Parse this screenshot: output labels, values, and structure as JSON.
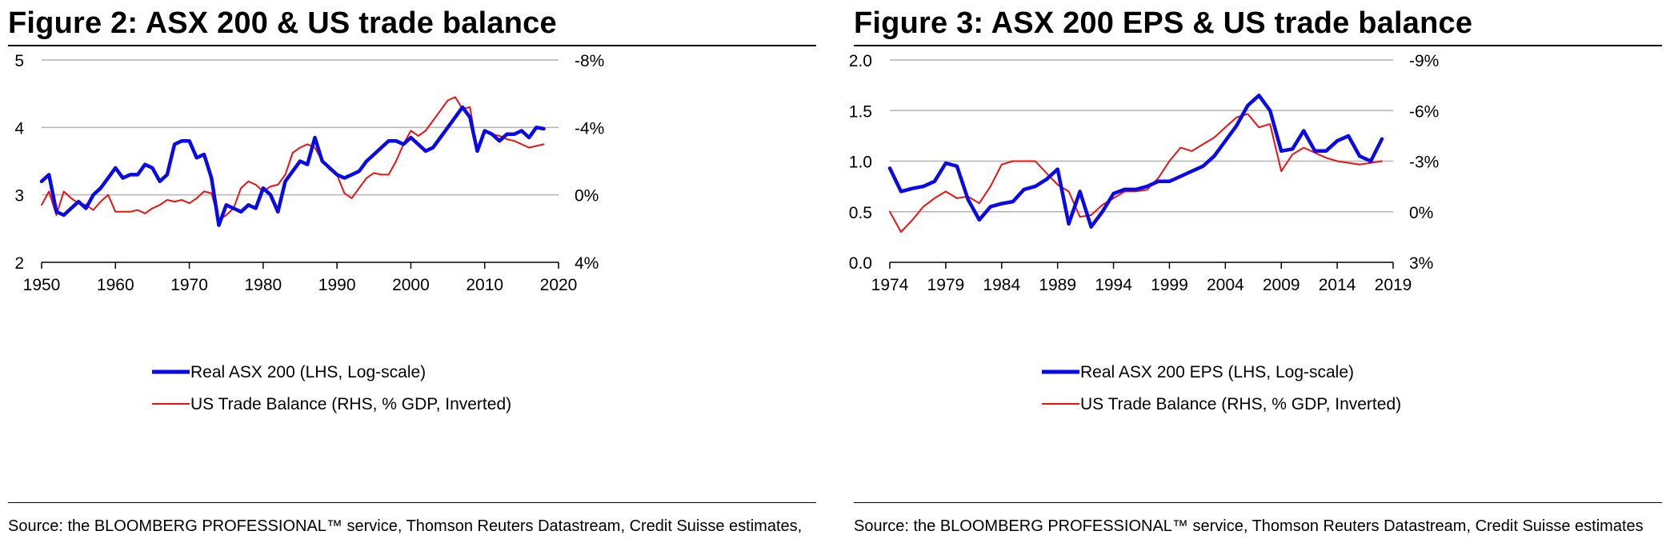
{
  "colors": {
    "asx": "#0a0ae6",
    "trade": "#ee1111",
    "grid": "#b3b3b3",
    "axis": "#000000"
  },
  "figures": [
    {
      "title": "Figure 2: ASX 200 & US trade balance",
      "source": "Source: the BLOOMBERG PROFESSIONAL™ service, Thomson Reuters Datastream, Credit Suisse estimates,"
    },
    {
      "title": "Figure 3: ASX 200 EPS & US trade balance",
      "source": "Source: the BLOOMBERG PROFESSIONAL™ service, Thomson Reuters Datastream, Credit Suisse estimates"
    }
  ],
  "chart_data": [
    {
      "type": "line",
      "title": "Figure 2: ASX 200 & US trade balance",
      "xlim": [
        1950,
        2020
      ],
      "x_ticks": [
        "1950",
        "1960",
        "1970",
        "1980",
        "1990",
        "2000",
        "2010",
        "2020"
      ],
      "x_tick_values": [
        1950,
        1960,
        1970,
        1980,
        1990,
        2000,
        2010,
        2020
      ],
      "ylim_left": [
        2,
        5
      ],
      "y_ticks_left": [
        "2",
        "3",
        "4",
        "5"
      ],
      "y_tick_values_left": [
        2,
        3,
        4,
        5
      ],
      "ylim_right": [
        4,
        -8
      ],
      "y_ticks_right": [
        "4%",
        "0%",
        "-4%",
        "-8%"
      ],
      "y_tick_values_right": [
        4,
        0,
        -4,
        -8
      ],
      "grid": true,
      "legend_position": "bottom-center",
      "series": [
        {
          "name": "Real ASX 200 (LHS, Log-scale)",
          "axis": "left",
          "x": [
            1950,
            1951,
            1952,
            1953,
            1954,
            1955,
            1956,
            1957,
            1958,
            1959,
            1960,
            1961,
            1962,
            1963,
            1964,
            1965,
            1966,
            1967,
            1968,
            1969,
            1970,
            1971,
            1972,
            1973,
            1974,
            1975,
            1976,
            1977,
            1978,
            1979,
            1980,
            1981,
            1982,
            1983,
            1984,
            1985,
            1986,
            1987,
            1988,
            1989,
            1990,
            1991,
            1992,
            1993,
            1994,
            1995,
            1996,
            1997,
            1998,
            1999,
            2000,
            2001,
            2002,
            2003,
            2004,
            2005,
            2006,
            2007,
            2008,
            2009,
            2010,
            2011,
            2012,
            2013,
            2014,
            2015,
            2016,
            2017,
            2018
          ],
          "values": [
            3.2,
            3.3,
            2.75,
            2.7,
            2.8,
            2.9,
            2.8,
            3.0,
            3.1,
            3.25,
            3.4,
            3.25,
            3.3,
            3.3,
            3.45,
            3.4,
            3.2,
            3.3,
            3.75,
            3.8,
            3.8,
            3.55,
            3.6,
            3.25,
            2.55,
            2.85,
            2.8,
            2.75,
            2.85,
            2.8,
            3.1,
            3.0,
            2.75,
            3.2,
            3.35,
            3.5,
            3.45,
            3.85,
            3.5,
            3.4,
            3.3,
            3.25,
            3.3,
            3.35,
            3.5,
            3.6,
            3.7,
            3.8,
            3.8,
            3.75,
            3.85,
            3.75,
            3.65,
            3.7,
            3.85,
            4.0,
            4.15,
            4.3,
            4.15,
            3.65,
            3.95,
            3.9,
            3.8,
            3.9,
            3.9,
            3.95,
            3.85,
            4.0,
            3.98
          ]
        },
        {
          "name": "US Trade Balance (RHS, % GDP, Inverted)",
          "axis": "right",
          "x": [
            1950,
            1951,
            1952,
            1953,
            1954,
            1955,
            1956,
            1957,
            1958,
            1959,
            1960,
            1961,
            1962,
            1963,
            1964,
            1965,
            1966,
            1967,
            1968,
            1969,
            1970,
            1971,
            1972,
            1973,
            1974,
            1975,
            1976,
            1977,
            1978,
            1979,
            1980,
            1981,
            1982,
            1983,
            1984,
            1985,
            1986,
            1987,
            1988,
            1989,
            1990,
            1991,
            1992,
            1993,
            1994,
            1995,
            1996,
            1997,
            1998,
            1999,
            2000,
            2001,
            2002,
            2003,
            2004,
            2005,
            2006,
            2007,
            2008,
            2009,
            2010,
            2011,
            2012,
            2013,
            2014,
            2015,
            2016,
            2017,
            2018
          ],
          "values": [
            0.6,
            -0.2,
            1.2,
            -0.2,
            0.2,
            0.5,
            0.6,
            0.9,
            0.4,
            0.0,
            1.0,
            1.0,
            1.0,
            0.9,
            1.1,
            0.8,
            0.6,
            0.3,
            0.4,
            0.3,
            0.5,
            0.2,
            -0.2,
            -0.1,
            1.5,
            1.2,
            0.8,
            -0.4,
            -0.8,
            -0.6,
            -0.2,
            -0.5,
            -0.6,
            -1.2,
            -2.5,
            -2.8,
            -3.0,
            -2.8,
            -2.0,
            -1.5,
            -1.2,
            -0.1,
            0.2,
            -0.4,
            -1.0,
            -1.3,
            -1.2,
            -1.2,
            -2.0,
            -3.0,
            -3.8,
            -3.5,
            -3.8,
            -4.4,
            -5.0,
            -5.6,
            -5.8,
            -5.1,
            -5.2,
            -2.6,
            -3.8,
            -3.6,
            -3.5,
            -3.3,
            -3.2,
            -3.0,
            -2.8,
            -2.9,
            -3.0
          ]
        }
      ]
    },
    {
      "type": "line",
      "title": "Figure 3: ASX 200 EPS & US trade balance",
      "xlim": [
        1974,
        2019
      ],
      "x_ticks": [
        "1974",
        "1979",
        "1984",
        "1989",
        "1994",
        "1999",
        "2004",
        "2009",
        "2014",
        "2019"
      ],
      "x_tick_values": [
        1974,
        1979,
        1984,
        1989,
        1994,
        1999,
        2004,
        2009,
        2014,
        2019
      ],
      "ylim_left": [
        0.0,
        2.0
      ],
      "y_ticks_left": [
        "0.0",
        "0.5",
        "1.0",
        "1.5",
        "2.0"
      ],
      "y_tick_values_left": [
        0,
        0.5,
        1,
        1.5,
        2
      ],
      "ylim_right": [
        3,
        -9
      ],
      "y_ticks_right": [
        "3%",
        "0%",
        "-3%",
        "-6%",
        "-9%"
      ],
      "y_tick_values_right": [
        3,
        0,
        -3,
        -6,
        -9
      ],
      "grid": true,
      "legend_position": "bottom-center",
      "series": [
        {
          "name": "Real ASX 200 EPS (LHS, Log-scale)",
          "axis": "left",
          "x": [
            1974,
            1975,
            1976,
            1977,
            1978,
            1979,
            1980,
            1981,
            1982,
            1983,
            1984,
            1985,
            1986,
            1987,
            1988,
            1989,
            1990,
            1991,
            1992,
            1993,
            1994,
            1995,
            1996,
            1997,
            1998,
            1999,
            2000,
            2001,
            2002,
            2003,
            2004,
            2005,
            2006,
            2007,
            2008,
            2009,
            2010,
            2011,
            2012,
            2013,
            2014,
            2015,
            2016,
            2017,
            2018
          ],
          "values": [
            0.93,
            0.7,
            0.73,
            0.75,
            0.8,
            0.98,
            0.95,
            0.62,
            0.42,
            0.55,
            0.58,
            0.6,
            0.72,
            0.75,
            0.82,
            0.92,
            0.38,
            0.7,
            0.35,
            0.5,
            0.68,
            0.72,
            0.72,
            0.75,
            0.8,
            0.8,
            0.85,
            0.9,
            0.95,
            1.05,
            1.2,
            1.35,
            1.55,
            1.65,
            1.5,
            1.1,
            1.12,
            1.3,
            1.1,
            1.1,
            1.2,
            1.25,
            1.05,
            1.0,
            1.22
          ]
        },
        {
          "name": "US Trade Balance (RHS, % GDP, Inverted)",
          "axis": "right",
          "x": [
            1974,
            1975,
            1976,
            1977,
            1978,
            1979,
            1980,
            1981,
            1982,
            1983,
            1984,
            1985,
            1986,
            1987,
            1988,
            1989,
            1990,
            1991,
            1992,
            1993,
            1994,
            1995,
            1996,
            1997,
            1998,
            1999,
            2000,
            2001,
            2002,
            2003,
            2004,
            2005,
            2006,
            2007,
            2008,
            2009,
            2010,
            2011,
            2012,
            2013,
            2014,
            2015,
            2016,
            2017,
            2018
          ],
          "values": [
            0.0,
            1.2,
            0.5,
            -0.3,
            -0.8,
            -1.2,
            -0.8,
            -0.9,
            -0.5,
            -1.5,
            -2.8,
            -3.0,
            -3.0,
            -3.0,
            -2.3,
            -1.6,
            -1.2,
            0.3,
            0.2,
            -0.4,
            -0.8,
            -1.2,
            -1.2,
            -1.3,
            -2.0,
            -3.0,
            -3.8,
            -3.6,
            -4.0,
            -4.4,
            -5.0,
            -5.6,
            -5.8,
            -5.0,
            -5.2,
            -2.4,
            -3.4,
            -3.8,
            -3.5,
            -3.2,
            -3.0,
            -2.9,
            -2.8,
            -2.9,
            -3.0
          ]
        }
      ]
    }
  ]
}
